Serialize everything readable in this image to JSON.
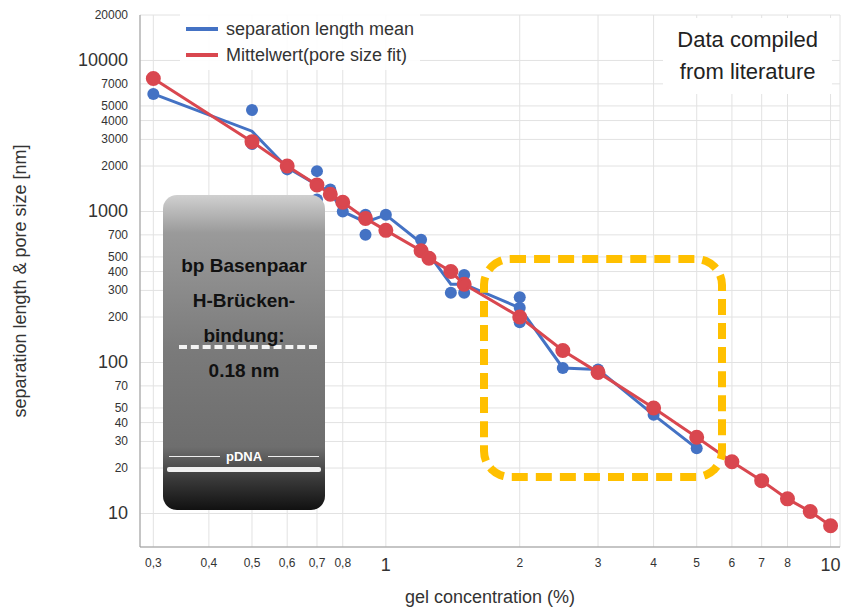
{
  "chart_data": {
    "type": "line",
    "log": true,
    "grid": true,
    "legend": "top-left",
    "x_label": "gel concentration (%)",
    "y_label": "separation length & pore size [nm]",
    "xlim": [
      0.28,
      10.5
    ],
    "ylim": [
      6,
      20000
    ],
    "xticks": [
      {
        "value": 0.3,
        "label": "0,3"
      },
      {
        "value": 0.4,
        "label": "0,4"
      },
      {
        "value": 0.5,
        "label": "0,5"
      },
      {
        "value": 0.6,
        "label": "0,6"
      },
      {
        "value": 0.7,
        "label": "0,7"
      },
      {
        "value": 0.8,
        "label": "0,8"
      },
      1,
      2,
      3,
      4,
      5,
      6,
      7,
      8,
      10
    ],
    "yticks": [
      10,
      20,
      30,
      40,
      50,
      70,
      100,
      200,
      300,
      400,
      500,
      700,
      1000,
      2000,
      3000,
      4000,
      5000,
      7000,
      10000,
      20000
    ],
    "series": [
      {
        "name": "separation length mean",
        "color": "#4472c4",
        "type": "line",
        "marker": "none",
        "x": [
          0.3,
          0.5,
          0.6,
          0.7,
          0.75,
          0.8,
          0.9,
          1,
          1.2,
          1.25,
          1.4,
          1.5,
          2,
          2.5,
          3,
          4,
          5
        ],
        "values": [
          6000,
          3400,
          1950,
          1500,
          1350,
          1000,
          850,
          950,
          620,
          520,
          330,
          330,
          230,
          92,
          90,
          45,
          27
        ]
      },
      {
        "color": "#4472c4",
        "type": "scatter",
        "marker": "circle",
        "x": [
          0.3,
          0.5,
          0.5,
          0.6,
          0.7,
          0.7,
          0.75,
          0.8,
          0.9,
          0.9,
          1,
          1.2,
          1.2,
          1.25,
          1.4,
          1.5,
          1.5,
          2,
          2,
          2,
          2.5,
          3,
          4,
          5
        ],
        "values": [
          6000,
          4700,
          2800,
          1900,
          1850,
          1200,
          1400,
          1000,
          950,
          700,
          950,
          650,
          550,
          500,
          290,
          380,
          290,
          270,
          230,
          185,
          92,
          90,
          45,
          27
        ]
      },
      {
        "name": "Mittelwert(pore size fit)",
        "color": "#d9474f",
        "type": "line",
        "marker": "circle",
        "x": [
          0.3,
          0.5,
          0.6,
          0.7,
          0.75,
          0.8,
          0.9,
          1,
          1.2,
          1.25,
          1.4,
          1.5,
          2,
          2.5,
          3,
          4,
          5,
          6,
          7,
          8,
          9,
          10
        ],
        "values": [
          7600,
          2900,
          2000,
          1500,
          1300,
          1150,
          900,
          750,
          550,
          490,
          400,
          330,
          200,
          120,
          86,
          50,
          32,
          22,
          16.5,
          12.5,
          10.3,
          8.3
        ]
      }
    ],
    "annotations": [
      {
        "text": [
          "Data compiled",
          "from literature"
        ]
      }
    ],
    "inset": {
      "lines": [
        "bp Basenpaar",
        "H-Brücken-",
        "bindung:",
        "0.18 nm"
      ],
      "band_label": "pDNA"
    }
  }
}
